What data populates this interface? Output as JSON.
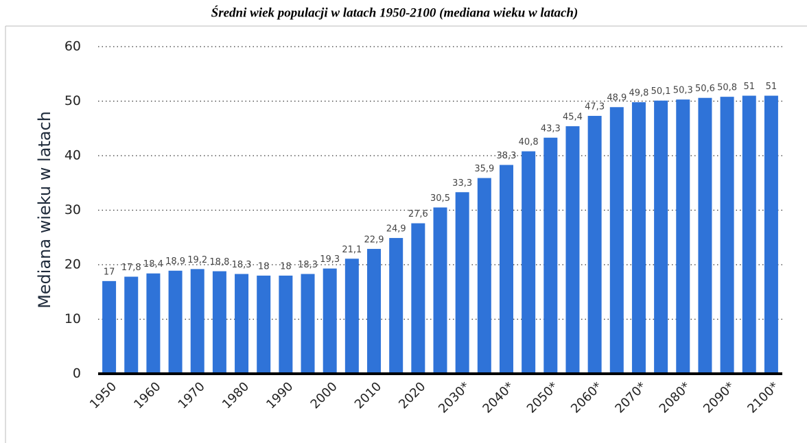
{
  "chart_data": {
    "type": "bar",
    "title": "Średni wiek populacji w latach 1950-2100 (mediana wieku w latach)",
    "y_label": "Mediana wieku w latach",
    "categories": [
      "1950",
      null,
      "1960",
      null,
      "1970",
      null,
      "1980",
      null,
      "1990",
      null,
      "2000",
      null,
      "2010",
      null,
      "2020",
      null,
      "2030*",
      null,
      "2040*",
      null,
      "2050*",
      null,
      "2060*",
      null,
      "2070*",
      null,
      "2080*",
      null,
      "2090*",
      null,
      "2100*"
    ],
    "values": [
      17,
      17.8,
      18.4,
      18.9,
      19.2,
      18.8,
      18.3,
      18,
      18,
      18.3,
      19.3,
      21.1,
      22.9,
      24.9,
      27.6,
      30.5,
      33.3,
      35.9,
      38.3,
      40.8,
      43.3,
      45.4,
      47.3,
      48.9,
      49.8,
      50.1,
      50.3,
      50.6,
      50.8,
      51,
      51
    ],
    "value_labels": [
      "17",
      "17,8",
      "18,4",
      "18,9",
      "19,2",
      "18,8",
      "18,3",
      "18",
      "18",
      "18,3",
      "19,3",
      "21,1",
      "22,9",
      "24,9",
      "27,6",
      "30,5",
      "33,3",
      "35,9",
      "38,3",
      "40,8",
      "43,3",
      "45,4",
      "47,3",
      "48,9",
      "49,8",
      "50,1",
      "50,3",
      "50,6",
      "50,8",
      "51",
      "51"
    ],
    "color": "#2f73d8",
    "ylim": [
      0,
      60
    ],
    "yticks": [
      0,
      10,
      20,
      30,
      40,
      50,
      60
    ],
    "grid": true
  }
}
